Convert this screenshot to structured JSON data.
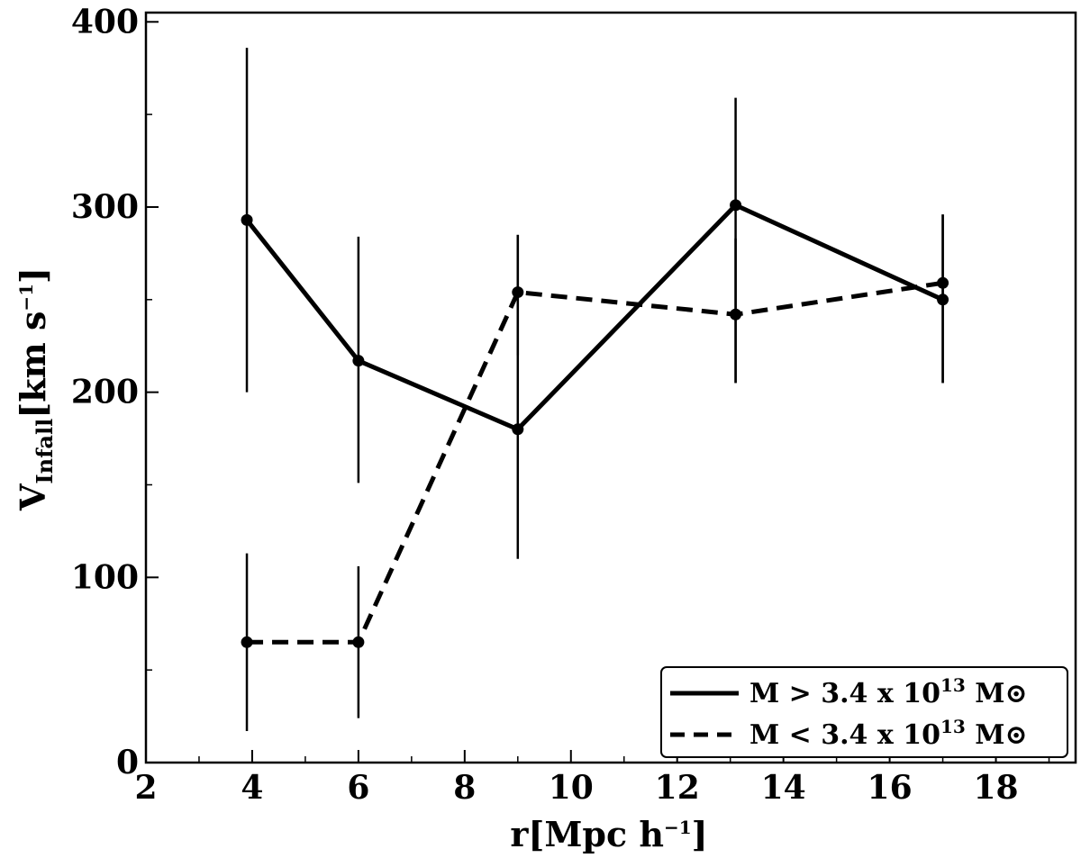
{
  "chart_data": {
    "type": "line",
    "xlabel": "r[Mpc h−1]",
    "ylabel": "VInfall[km s−1]",
    "xlim": [
      2,
      19.5
    ],
    "ylim": [
      0,
      405
    ],
    "x_ticks": [
      "2",
      "4",
      "6",
      "8",
      "10",
      "12",
      "14",
      "16",
      "18"
    ],
    "y_ticks": [
      "0",
      "100",
      "200",
      "300",
      "400"
    ],
    "grid": false,
    "legend_position": "bottom-right",
    "series": [
      {
        "name": "M > 3.4 x 1013 M⊙",
        "style": "solid",
        "x": [
          3.9,
          6.0,
          9.0,
          13.1,
          17.0
        ],
        "y": [
          293,
          217,
          180,
          301,
          250
        ],
        "err_low": [
          200,
          151,
          110,
          205,
          205
        ],
        "err_high": [
          386,
          284,
          285,
          359,
          296
        ]
      },
      {
        "name": "M < 3.4 x 1013 M⊙",
        "style": "dashed",
        "x": [
          3.9,
          6.0,
          9.0,
          13.1,
          17.0
        ],
        "y": [
          65,
          65,
          254,
          242,
          259
        ],
        "err_low": [
          17,
          24,
          220,
          205,
          205
        ],
        "err_high": [
          113,
          106,
          285,
          283,
          296
        ]
      }
    ],
    "colors": {
      "line": "#000000",
      "background": "#ffffff"
    }
  }
}
